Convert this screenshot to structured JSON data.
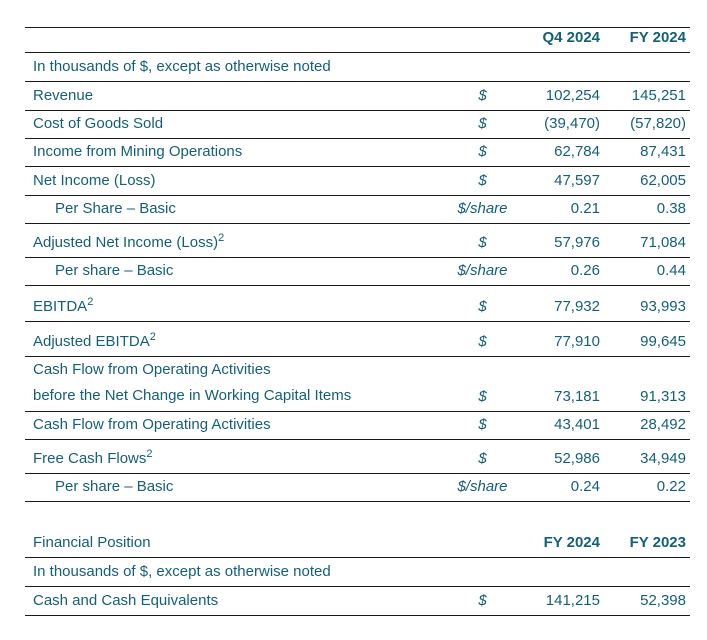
{
  "colors": {
    "text": "#145F78",
    "rule": "#1a1a1a"
  },
  "table1": {
    "header": {
      "col_q4": "Q4 2024",
      "col_fy": "FY 2024"
    },
    "subtitle": "In thousands of $, except as otherwise noted",
    "rows": [
      {
        "label": "Revenue",
        "unit": "$",
        "q4": "102,254",
        "fy": "145,251"
      },
      {
        "label": "Cost of Goods Sold",
        "unit": "$",
        "q4": "(39,470)",
        "fy": "(57,820)"
      },
      {
        "label": "Income from Mining Operations",
        "unit": "$",
        "q4": "62,784",
        "fy": "87,431"
      },
      {
        "label": "Net Income (Loss)",
        "unit": "$",
        "q4": "47,597",
        "fy": "62,005"
      },
      {
        "label": "Per Share – Basic",
        "unit": "$/share",
        "q4": "0.21",
        "fy": "0.38"
      },
      {
        "label": "Adjusted Net Income (Loss)",
        "sup": "2",
        "unit": "$",
        "q4": "57,976",
        "fy": "71,084"
      },
      {
        "label": "Per share – Basic",
        "unit": "$/share",
        "q4": "0.26",
        "fy": "0.44"
      },
      {
        "label": "EBITDA",
        "sup": "2",
        "unit": "$",
        "q4": "77,932",
        "fy": "93,993"
      },
      {
        "label": "Adjusted EBITDA",
        "sup": "2",
        "unit": "$",
        "q4": "77,910",
        "fy": "99,645"
      },
      {
        "label": "Cash Flow from Operating Activities",
        "label2": "before the Net Change in Working Capital Items",
        "unit": "$",
        "q4": "73,181",
        "fy": "91,313"
      },
      {
        "label": "Cash Flow from Operating Activities",
        "unit": "$",
        "q4": "43,401",
        "fy": "28,492"
      },
      {
        "label": "Free Cash Flows",
        "sup": "2",
        "unit": "$",
        "q4": "52,986",
        "fy": "34,949"
      },
      {
        "label": "Per share – Basic",
        "unit": "$/share",
        "q4": "0.24",
        "fy": "0.22"
      }
    ]
  },
  "table2": {
    "header": {
      "title": "Financial Position",
      "col_fy24": "FY 2024",
      "col_fy23": "FY 2023"
    },
    "subtitle": "In thousands of $, except as otherwise noted",
    "rows": [
      {
        "label": "Cash and Cash Equivalents",
        "unit": "$",
        "fy24": "141,215",
        "fy23": "52,398"
      }
    ]
  }
}
